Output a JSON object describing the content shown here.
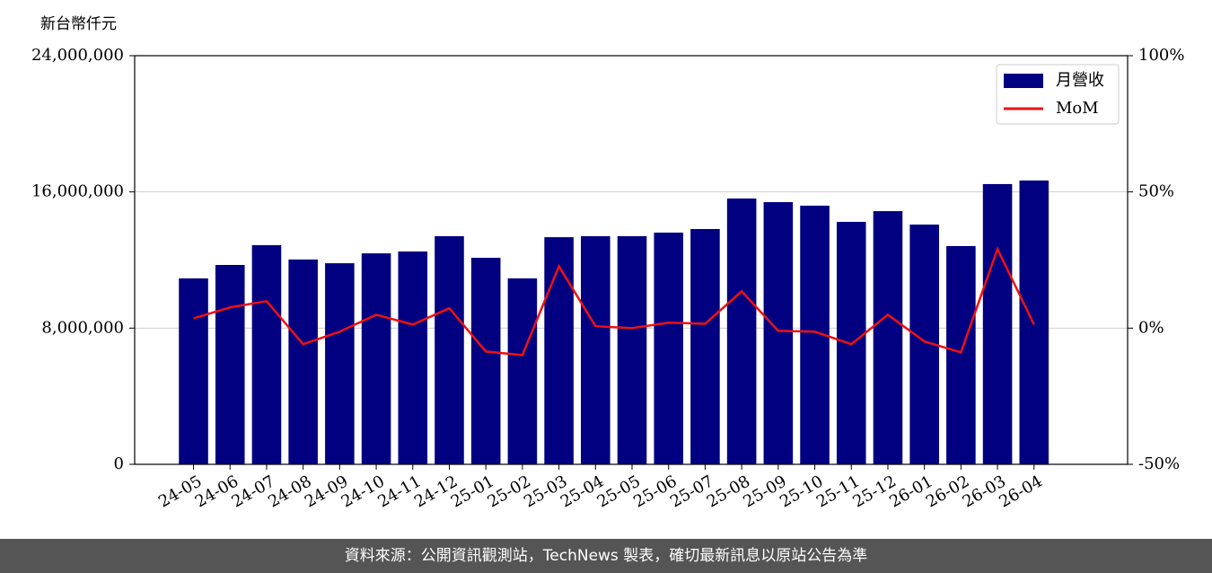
{
  "chart_data": {
    "type": "bar-line",
    "y_label": "新台幣仟元",
    "categories": [
      "24-05",
      "24-06",
      "24-07",
      "24-08",
      "24-09",
      "24-10",
      "24-11",
      "24-12",
      "25-01",
      "25-02",
      "25-03",
      "25-04",
      "25-05",
      "25-06",
      "25-07",
      "25-08",
      "25-09",
      "25-10",
      "25-11",
      "25-12",
      "26-01",
      "26-02",
      "26-03",
      "26-04"
    ],
    "series": [
      {
        "name": "月營收",
        "type": "bar",
        "color": "#000080",
        "values": [
          10920000,
          11710000,
          12870000,
          12030000,
          11810000,
          12390000,
          12500000,
          13400000,
          12130000,
          10920000,
          13340000,
          13400000,
          13400000,
          13610000,
          13820000,
          15610000,
          15400000,
          15190000,
          14240000,
          14870000,
          14080000,
          12820000,
          16460000,
          16670000
        ]
      },
      {
        "name": "MoM",
        "type": "line",
        "axis": "y2",
        "color": "#ee1111",
        "values": [
          3.6,
          7.6,
          9.9,
          -5.9,
          -1.3,
          4.9,
          1.3,
          7.3,
          -8.6,
          -9.9,
          22.7,
          0.7,
          0,
          2.0,
          1.6,
          13.5,
          -1.0,
          -1.3,
          -5.9,
          4.9,
          -4.9,
          -8.9,
          29.0,
          1.3
        ]
      }
    ],
    "ylim": [
      0,
      24000000
    ],
    "yticks": [
      0,
      {
        "value": 8000000,
        "label": "8,000,000"
      },
      {
        "value": 16000000,
        "label": "16,000,000"
      },
      {
        "value": 24000000,
        "label": "24,000,000"
      }
    ],
    "y2lim": [
      -50,
      100
    ],
    "y2ticks": [
      {
        "value": -50,
        "label": "-50%"
      },
      {
        "value": 0,
        "label": "0%"
      },
      {
        "value": 50,
        "label": "50%"
      },
      {
        "value": 100,
        "label": "100%"
      }
    ],
    "grid": true,
    "legend": "upper right",
    "footer": "資料來源：公開資訊觀測站，TechNews 製表，確切最新訊息以原站公告為準"
  }
}
